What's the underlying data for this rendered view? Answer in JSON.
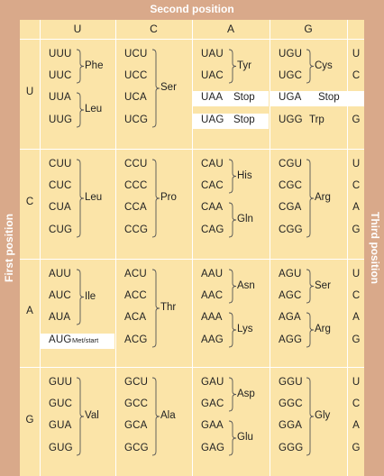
{
  "axes": {
    "top": "Second position",
    "left": "First position",
    "right": "Third position"
  },
  "second_positions": [
    "U",
    "C",
    "A",
    "G"
  ],
  "first_positions": [
    "U",
    "C",
    "A",
    "G"
  ],
  "third_positions": [
    "U",
    "C",
    "A",
    "G"
  ],
  "blocks": {
    "UU": [
      "UUU",
      "UUC",
      "UUA",
      "UUG"
    ],
    "UC": [
      "UCU",
      "UCC",
      "UCA",
      "UCG"
    ],
    "UA": [
      "UAU",
      "UAC",
      "UAA",
      "UAG"
    ],
    "UG": [
      "UGU",
      "UGC",
      "UGA",
      "UGG"
    ],
    "CU": [
      "CUU",
      "CUC",
      "CUA",
      "CUG"
    ],
    "CC": [
      "CCU",
      "CCC",
      "CCA",
      "CCG"
    ],
    "CA": [
      "CAU",
      "CAC",
      "CAA",
      "CAG"
    ],
    "CG": [
      "CGU",
      "CGC",
      "CGA",
      "CGG"
    ],
    "AU": [
      "AUU",
      "AUC",
      "AUA",
      "AUG"
    ],
    "AC": [
      "ACU",
      "ACC",
      "ACA",
      "ACG"
    ],
    "AA": [
      "AAU",
      "AAC",
      "AAA",
      "AAG"
    ],
    "AG": [
      "AGU",
      "AGC",
      "AGA",
      "AGG"
    ],
    "GU": [
      "GUU",
      "GUC",
      "GUA",
      "GUG"
    ],
    "GC": [
      "GCU",
      "GCC",
      "GCA",
      "GCG"
    ],
    "GA": [
      "GAU",
      "GAC",
      "GAA",
      "GAG"
    ],
    "GG": [
      "GGU",
      "GGC",
      "GGA",
      "GGG"
    ]
  },
  "amino_acids": {
    "phe": "Phe",
    "leu": "Leu",
    "ser": "Ser",
    "tyr": "Tyr",
    "cys": "Cys",
    "stop": "Stop",
    "trp": "Trp",
    "pro": "Pro",
    "his": "His",
    "gln": "Gln",
    "arg": "Arg",
    "ile": "Ile",
    "met_start": "Met/start",
    "thr": "Thr",
    "asn": "Asn",
    "lys": "Lys",
    "val": "Val",
    "ala": "Ala",
    "asp": "Asp",
    "glu": "Glu",
    "gly": "Gly"
  },
  "colors": {
    "frame": "#d9a98a",
    "cell": "#fbe4a8",
    "highlight": "#ffffff"
  }
}
